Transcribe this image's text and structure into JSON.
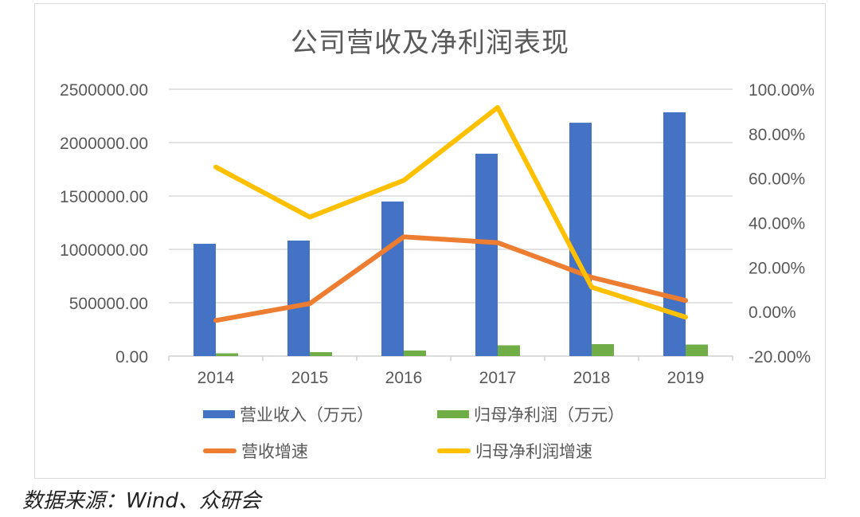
{
  "chart_data": {
    "type": "bar+line",
    "title": "公司营收及净利润表现",
    "categories": [
      "2014",
      "2015",
      "2016",
      "2017",
      "2018",
      "2019"
    ],
    "series": [
      {
        "name": "营业收入（万元）",
        "type": "bar",
        "axis": "left",
        "color": "#4472c4",
        "values": [
          1052000,
          1082000,
          1448000,
          1896000,
          2186000,
          2284000
        ]
      },
      {
        "name": "归母净利润（万元）",
        "type": "bar",
        "axis": "left",
        "color": "#70ad47",
        "values": [
          26000,
          37000,
          52000,
          101000,
          112000,
          108000
        ]
      },
      {
        "name": "营收增速",
        "type": "line",
        "axis": "right",
        "color": "#ed7d31",
        "values": [
          -4.0,
          3.6,
          33.6,
          31.0,
          15.4,
          5.0
        ]
      },
      {
        "name": "归母净利润增速",
        "type": "line",
        "axis": "right",
        "color": "#ffc000",
        "values": [
          65.0,
          42.5,
          59.0,
          91.8,
          11.0,
          -2.5
        ]
      }
    ],
    "left_axis": {
      "ylim": [
        0,
        2500000
      ],
      "ticks": [
        "0.00",
        "500000.00",
        "1000000.00",
        "1500000.00",
        "2000000.00",
        "2500000.00"
      ]
    },
    "right_axis": {
      "ylim": [
        -20,
        100
      ],
      "ticks": [
        "-20.00%",
        "0.00%",
        "20.00%",
        "40.00%",
        "60.00%",
        "80.00%",
        "100.00%"
      ]
    },
    "xlabel": "",
    "ylabel": "",
    "grid": true,
    "legend_position": "bottom"
  },
  "legend": {
    "items": [
      {
        "label": "营业收入（万元）",
        "color": "#4472c4",
        "kind": "bar"
      },
      {
        "label": "归母净利润（万元）",
        "color": "#70ad47",
        "kind": "bar"
      },
      {
        "label": "营收增速",
        "color": "#ed7d31",
        "kind": "line"
      },
      {
        "label": "归母净利润增速",
        "color": "#ffc000",
        "kind": "line"
      }
    ]
  },
  "source": "数据来源：Wind、众研会"
}
